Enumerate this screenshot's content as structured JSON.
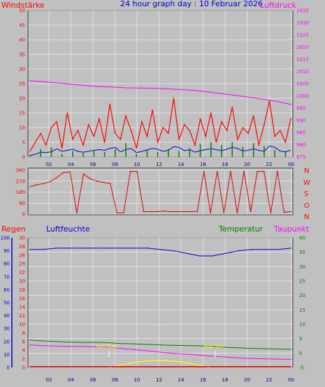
{
  "header": {
    "left": "Windstärke",
    "center": "24 hour graph day : 10 Februar 2026",
    "right": "Luftdruck"
  },
  "section_labels": {
    "rain": "Regen",
    "humidity": "Luftfeuchte",
    "temperature": "Temperatur",
    "dewpoint": "Taupunkt"
  },
  "annotations": {
    "sunrise": "Sun Rise",
    "sunset": "Sun Set"
  },
  "colors": {
    "background": "#c0c0c0",
    "grid": "#ffffff",
    "wind": "#ff0000",
    "wind_avg": "#0000cc",
    "gust_bars": "#008000",
    "pressure": "#ff00ff",
    "direction": "#dd0000",
    "humidity": "#0000cc",
    "temperature": "#008000",
    "dewpoint": "#ff00ff",
    "rain": "#ff0000",
    "solar": "#ffff00",
    "uv": "#c8d8ff"
  },
  "chart_data": [
    {
      "type": "line",
      "x_ticks": [
        "02",
        "04",
        "06",
        "08",
        "10",
        "12",
        "14",
        "16",
        "18",
        "20",
        "22",
        "00"
      ],
      "y_left": {
        "ticks": [
          "0",
          "5",
          "10",
          "15",
          "20",
          "25",
          "30",
          "35",
          "40",
          "45",
          "50"
        ],
        "ylim": [
          0,
          50
        ]
      },
      "y_right": {
        "ticks": [
          "975",
          "980",
          "985",
          "990",
          "995",
          "1000",
          "1005",
          "1010",
          "1015",
          "1020",
          "1025",
          "1030",
          "1035"
        ],
        "ylim": [
          975,
          1035
        ]
      },
      "series": [
        {
          "name": "Windstärke",
          "axis": "left",
          "values": [
            2,
            5,
            8,
            4,
            10,
            12,
            3,
            15,
            6,
            9,
            4,
            11,
            7,
            13,
            5,
            18,
            8,
            6,
            14,
            9,
            3,
            12,
            7,
            16,
            5,
            10,
            8,
            20,
            6,
            11,
            9,
            4,
            13,
            7,
            15,
            5,
            12,
            9,
            17,
            6,
            10,
            8,
            14,
            4,
            11,
            19,
            7,
            9,
            5,
            13
          ]
        },
        {
          "name": "Luftdruck",
          "axis": "right",
          "values": [
            1006.2,
            1005.8,
            1005.3,
            1004.8,
            1004.3,
            1003.9,
            1003.6,
            1003.3,
            1003.2,
            1003.1,
            1002.9,
            1002.6,
            1002.2,
            1001.6,
            1000.9,
            1000.2,
            999.4,
            998.6,
            997.7,
            996.5
          ]
        }
      ]
    },
    {
      "type": "line",
      "x_ticks": [
        "02",
        "04",
        "06",
        "08",
        "10",
        "12",
        "14",
        "16",
        "18",
        "20",
        "22",
        "00"
      ],
      "y_left": {
        "ticks": [
          "0",
          "90",
          "180",
          "270",
          "360"
        ],
        "ylim": [
          0,
          360
        ]
      },
      "y_right": {
        "ticks": [
          "N",
          "W",
          "S",
          "O",
          "N"
        ]
      },
      "series": [
        {
          "name": "Windrichtung",
          "values": [
            225,
            240,
            250,
            265,
            300,
            340,
            345,
            10,
            330,
            290,
            270,
            260,
            250,
            10,
            10,
            350,
            350,
            20,
            20,
            20,
            25,
            20,
            20,
            20,
            20,
            20,
            350,
            10,
            350,
            10,
            350,
            10,
            350,
            20,
            350,
            350,
            10,
            350,
            15,
            20
          ]
        }
      ]
    },
    {
      "type": "line",
      "x_ticks": [
        "02",
        "04",
        "06",
        "08",
        "10",
        "12",
        "14",
        "16",
        "18",
        "20",
        "22",
        "00"
      ],
      "y_left_rain": {
        "ticks": [
          "0",
          "2",
          "4",
          "6",
          "8",
          "10",
          "12",
          "14",
          "16",
          "18",
          "20",
          "22",
          "24",
          "26",
          "28",
          "30"
        ],
        "ylim": [
          0,
          30
        ]
      },
      "y_left_humidity": {
        "ticks": [
          "0",
          "10",
          "20",
          "30",
          "40",
          "50",
          "60",
          "70",
          "80",
          "90",
          "100"
        ],
        "ylim": [
          0,
          100
        ]
      },
      "y_right": {
        "ticks": [
          "-5",
          "0",
          "5",
          "10",
          "15",
          "20",
          "25",
          "30",
          "35",
          "40"
        ],
        "ylim": [
          -5,
          40
        ]
      },
      "series": [
        {
          "name": "Luftfeuchte",
          "values": [
            91,
            91,
            92,
            92,
            92,
            92,
            92,
            92,
            92,
            92,
            91,
            90,
            88,
            86,
            86,
            88,
            90,
            91,
            91,
            91,
            92
          ]
        },
        {
          "name": "Temperatur",
          "values": [
            4.5,
            4.2,
            4.0,
            3.8,
            3.7,
            3.7,
            3.6,
            3.3,
            3.2,
            3.0,
            2.8,
            2.7,
            2.6,
            2.5,
            2.3,
            2.0,
            1.8,
            1.6,
            1.5,
            1.4,
            1.3
          ]
        },
        {
          "name": "Taupunkt",
          "values": [
            2.8,
            2.6,
            2.4,
            2.3,
            2.3,
            2.2,
            2.1,
            1.6,
            1.2,
            0.8,
            0.3,
            -0.1,
            -0.4,
            -0.7,
            -1.1,
            -1.4,
            -1.7,
            -1.9,
            -2.0,
            -2.1,
            -2.2
          ]
        },
        {
          "name": "Regen",
          "values": [
            0.2,
            0.2,
            0.2,
            0.2,
            0.2,
            0.2,
            0.2,
            0.2,
            0.2,
            0.2,
            0.2,
            0.2,
            0.2,
            0.2,
            0.2,
            0.2,
            0.2,
            0.2,
            0.2,
            0.2,
            0.2
          ]
        }
      ]
    }
  ]
}
